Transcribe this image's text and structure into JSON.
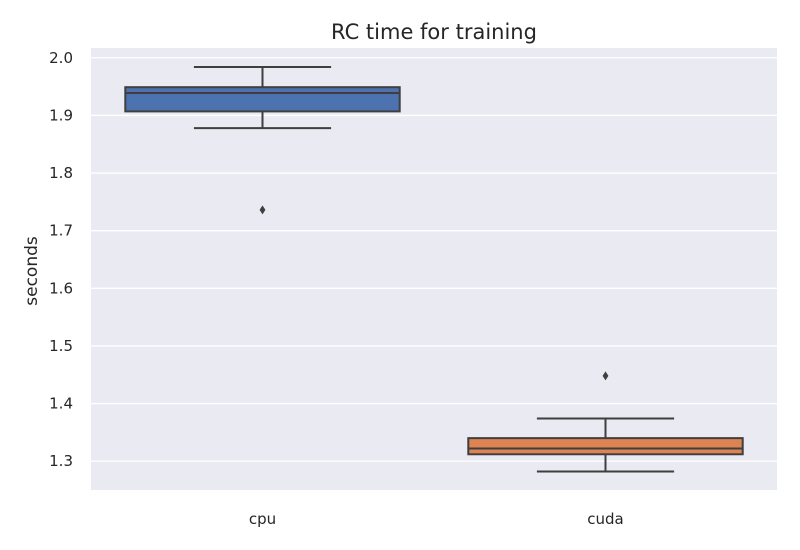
{
  "chart_data": {
    "type": "box",
    "title": "RC time for training",
    "xlabel": "",
    "ylabel": "seconds",
    "ylim": [
      1.25,
      2.017
    ],
    "yticks": [
      1.3,
      1.4,
      1.5,
      1.6,
      1.7,
      1.8,
      1.9,
      2.0
    ],
    "ytick_labels": [
      "1.3",
      "1.4",
      "1.5",
      "1.6",
      "1.7",
      "1.8",
      "1.9",
      "2.0"
    ],
    "grid": true,
    "categories": [
      "cpu",
      "cuda"
    ],
    "boxes": [
      {
        "category": "cpu",
        "whisker_low": 1.878,
        "q1": 1.907,
        "median": 1.939,
        "q3": 1.949,
        "whisker_high": 1.984,
        "outliers": [
          1.736
        ],
        "color": "#4c72b0"
      },
      {
        "category": "cuda",
        "whisker_low": 1.282,
        "q1": 1.312,
        "median": 1.322,
        "q3": 1.34,
        "whisker_high": 1.374,
        "outliers": [
          1.448
        ],
        "color": "#dd8452"
      }
    ]
  },
  "style": {
    "plot_background": "#eaeaf2",
    "grid_color": "#ffffff",
    "line_color": "#3f3f3f"
  }
}
